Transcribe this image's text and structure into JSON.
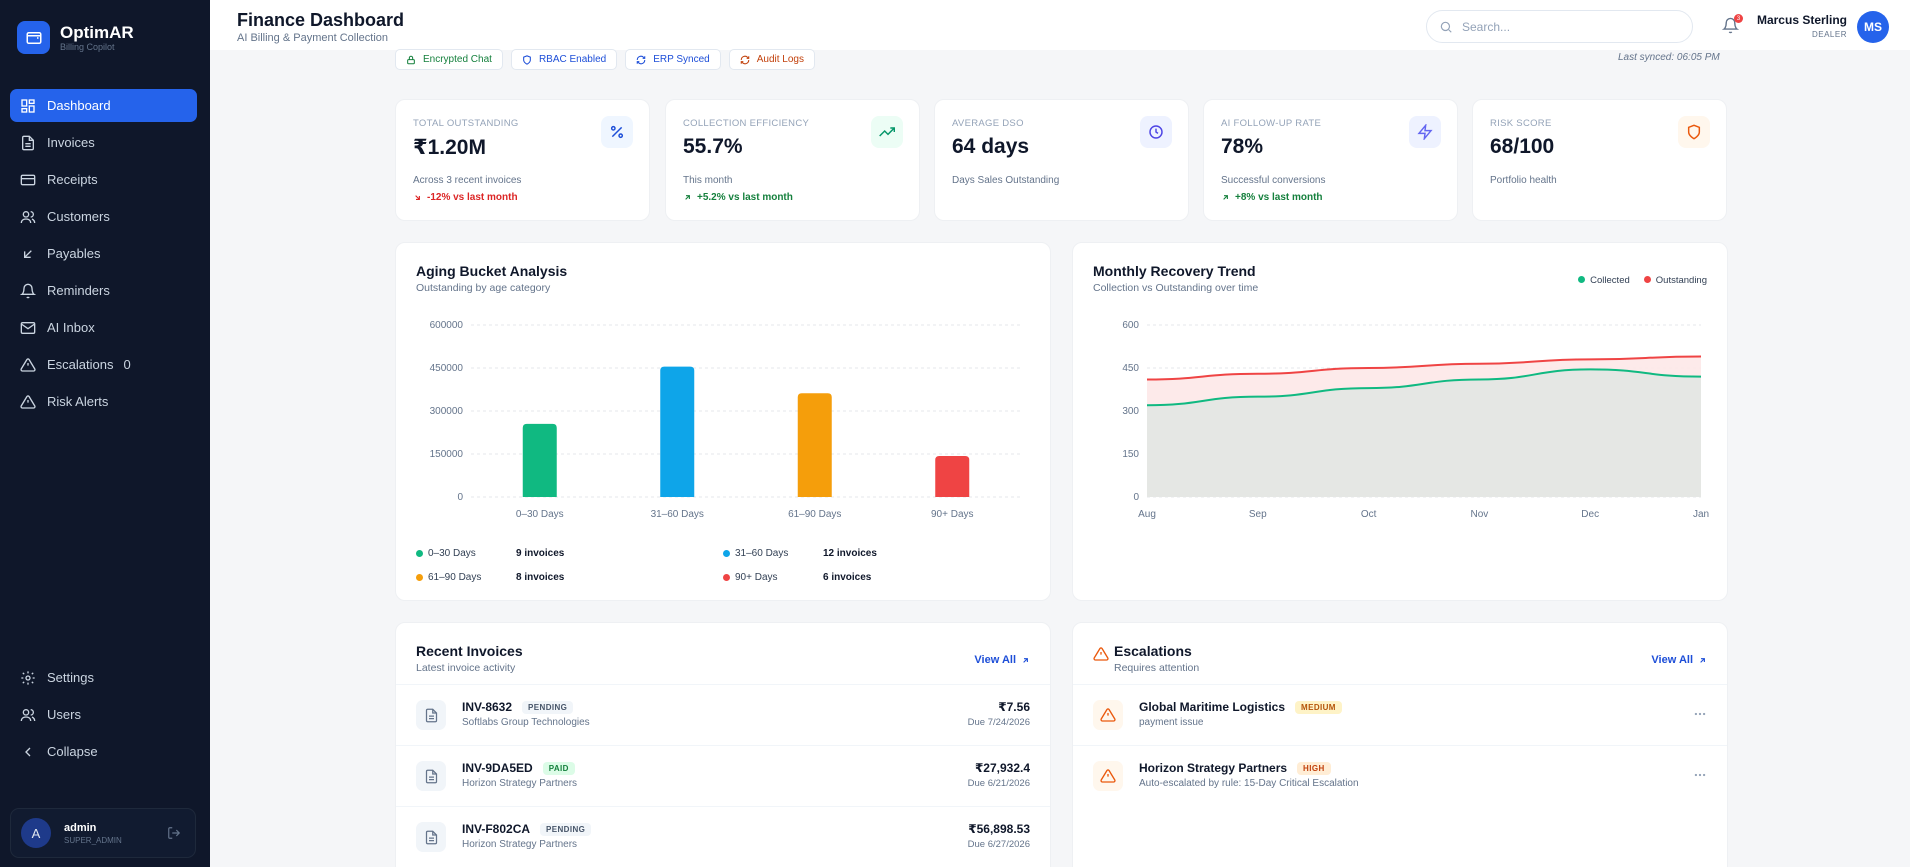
{
  "brand": {
    "name": "OptimAR",
    "tagline": "Billing Copilot"
  },
  "sidebar": {
    "items": [
      {
        "label": "Dashboard",
        "icon": "dashboard-icon",
        "active": true
      },
      {
        "label": "Invoices",
        "icon": "file-icon"
      },
      {
        "label": "Receipts",
        "icon": "credit-card-icon"
      },
      {
        "label": "Customers",
        "icon": "users-icon"
      },
      {
        "label": "Payables",
        "icon": "arrow-down-left-icon"
      },
      {
        "label": "Reminders",
        "icon": "bell-icon"
      },
      {
        "label": "AI Inbox",
        "icon": "mail-icon"
      },
      {
        "label": "Escalations",
        "icon": "alert-triangle-icon",
        "badge": "0"
      },
      {
        "label": "Risk Alerts",
        "icon": "alert-triangle-icon"
      }
    ],
    "bottom": [
      {
        "label": "Settings",
        "icon": "gear-icon"
      },
      {
        "label": "Users",
        "icon": "users-icon"
      },
      {
        "label": "Collapse",
        "icon": "chevron-left-icon"
      }
    ],
    "user": {
      "initial": "A",
      "name": "admin",
      "role": "SUPER_ADMIN"
    }
  },
  "header": {
    "title": "Finance Dashboard",
    "subtitle": "AI Billing & Payment Collection",
    "search_placeholder": "Search...",
    "notification_count": "3",
    "user_name": "Marcus Sterling",
    "user_role": "DEALER",
    "user_initials": "MS"
  },
  "chips": [
    {
      "label": "Encrypted Chat",
      "color": "#15803d"
    },
    {
      "label": "RBAC Enabled",
      "color": "#1d4ed8"
    },
    {
      "label": "ERP Synced",
      "color": "#1d4ed8"
    },
    {
      "label": "Audit Logs",
      "color": "#c2410c"
    }
  ],
  "last_synced": "Last synced: 06:05 PM",
  "kpis": [
    {
      "label": "TOTAL OUTSTANDING",
      "value": "₹1.20M",
      "sub": "Across 3 recent invoices",
      "trend": "-12% vs last month",
      "trend_dir": "down",
      "icon": "percent-icon"
    },
    {
      "label": "COLLECTION EFFICIENCY",
      "value": "55.7%",
      "sub": "This month",
      "trend": "+5.2% vs last month",
      "trend_dir": "up",
      "icon": "trending-up-icon"
    },
    {
      "label": "AVERAGE DSO",
      "value": "64 days",
      "sub": "Days Sales Outstanding",
      "trend": "",
      "icon": "clock-icon"
    },
    {
      "label": "AI FOLLOW-UP RATE",
      "value": "78%",
      "sub": "Successful conversions",
      "trend": "+8% vs last month",
      "trend_dir": "up",
      "icon": "lightning-icon"
    },
    {
      "label": "RISK SCORE",
      "value": "68/100",
      "sub": "Portfolio health",
      "trend": "",
      "icon": "shield-icon"
    }
  ],
  "aging": {
    "title": "Aging Bucket Analysis",
    "subtitle": "Outstanding by age category",
    "legend": [
      {
        "label": "0–30 Days",
        "count": "9 invoices",
        "color": "#10b981"
      },
      {
        "label": "31–60 Days",
        "count": "12 invoices",
        "color": "#0ea5e9"
      },
      {
        "label": "61–90 Days",
        "count": "8 invoices",
        "color": "#f59e0b"
      },
      {
        "label": "90+ Days",
        "count": "6 invoices",
        "color": "#ef4444"
      }
    ]
  },
  "trend": {
    "title": "Monthly Recovery Trend",
    "subtitle": "Collection vs Outstanding over time",
    "legend": [
      {
        "label": "Collected",
        "color": "#10b981"
      },
      {
        "label": "Outstanding",
        "color": "#ef4444"
      }
    ]
  },
  "chart_data": [
    {
      "type": "bar",
      "categories": [
        "0–30 Days",
        "31–60 Days",
        "61–90 Days",
        "90+ Days"
      ],
      "values": [
        255000,
        455000,
        362000,
        143000
      ],
      "colors": [
        "#10b981",
        "#0ea5e9",
        "#f59e0b",
        "#ef4444"
      ],
      "yticks": [
        "600000",
        "450000",
        "300000",
        "150000",
        "0"
      ],
      "ylim": [
        0,
        600000
      ],
      "grid": true
    },
    {
      "type": "area",
      "x": [
        "Aug",
        "Sep",
        "Oct",
        "Nov",
        "Dec",
        "Jan"
      ],
      "series": [
        {
          "name": "Collected",
          "values": [
            320,
            350,
            380,
            410,
            445,
            420
          ],
          "color": "#10b981"
        },
        {
          "name": "Outstanding",
          "values": [
            410,
            430,
            450,
            465,
            480,
            490
          ],
          "color": "#ef4444"
        }
      ],
      "yticks": [
        "600",
        "450",
        "300",
        "150",
        "0"
      ],
      "ylim": [
        0,
        600
      ],
      "grid": true,
      "legend": "top-right"
    }
  ],
  "recent_invoices": {
    "title": "Recent Invoices",
    "subtitle": "Latest invoice activity",
    "view_all": "View All",
    "rows": [
      {
        "id": "INV-8632",
        "status": "PENDING",
        "company": "Softlabs Group Technologies",
        "amount": "₹7.56",
        "due": "Due 7/24/2026"
      },
      {
        "id": "INV-9DA5ED",
        "status": "PAID",
        "company": "Horizon Strategy Partners",
        "amount": "₹27,932.4",
        "due": "Due 6/21/2026"
      },
      {
        "id": "INV-F802CA",
        "status": "PENDING",
        "company": "Horizon Strategy Partners",
        "amount": "₹56,898.53",
        "due": "Due 6/27/2026"
      }
    ]
  },
  "escalations": {
    "title": "Escalations",
    "subtitle": "Requires attention",
    "view_all": "View All",
    "rows": [
      {
        "name": "Global Maritime Logistics",
        "level": "MEDIUM",
        "desc": "payment issue"
      },
      {
        "name": "Horizon Strategy Partners",
        "level": "HIGH",
        "desc": "Auto-escalated by rule: 15-Day Critical Escalation"
      }
    ]
  }
}
